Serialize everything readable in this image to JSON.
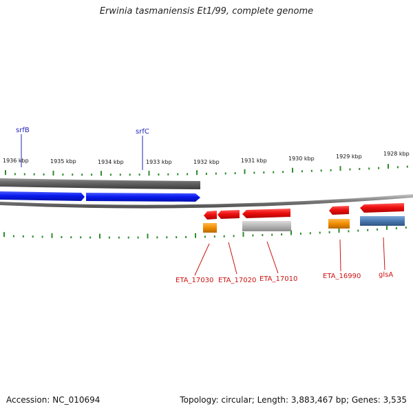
{
  "title": "Erwinia tasmaniensis Et1/99, complete genome",
  "footer": {
    "accession": "Accession: NC_010694",
    "summary": "Topology: circular; Length: 3,883,467 bp; Genes: 3,535"
  },
  "colors": {
    "forward_genes": "#1020e0",
    "highlight_gene": "#e01010",
    "gene_label_red": "#cc1111",
    "gene_label_blue": "#2222bb",
    "tick": "#2e8b2e",
    "backbone": "#808080",
    "orange_feature": "#f08c00",
    "gray_feature": "#b4b4b4",
    "steelblue_feature": "#4a7ab0"
  },
  "scale": {
    "ticks_kbp": [
      {
        "label": "1936 kbp"
      },
      {
        "label": "1935 kbp"
      },
      {
        "label": "1934 kbp"
      },
      {
        "label": "1933 kbp"
      },
      {
        "label": "1932 kbp"
      },
      {
        "label": "1931 kbp"
      },
      {
        "label": "1930 kbp"
      },
      {
        "label": "1929 kbp"
      },
      {
        "label": "1928 kbp"
      }
    ]
  },
  "genes_top": [
    {
      "name": "srfB",
      "strand": "+"
    },
    {
      "name": "srfC",
      "strand": "+"
    }
  ],
  "genes_bottom": [
    {
      "name": "ETA_17030",
      "strand": "-"
    },
    {
      "name": "ETA_17020",
      "strand": "-"
    },
    {
      "name": "ETA_17010",
      "strand": "-"
    },
    {
      "name": "ETA_16990",
      "strand": "-"
    },
    {
      "name": "glsA",
      "strand": "-"
    }
  ]
}
